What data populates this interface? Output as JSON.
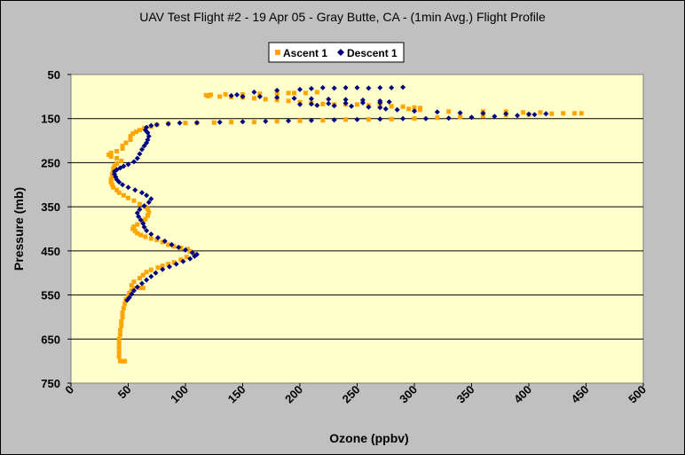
{
  "chart_data": {
    "type": "scatter",
    "title": "UAV Test Flight #2 - 19 Apr 05 - Gray Butte, CA - (1min Avg.) Flight Profile",
    "xlabel": "Ozone (ppbv)",
    "ylabel": "Pressure (mb)",
    "xlim": [
      0,
      500
    ],
    "ylim": [
      50,
      750
    ],
    "y_inverted": true,
    "xticks": [
      "0",
      "50",
      "100",
      "150",
      "200",
      "250",
      "300",
      "350",
      "400",
      "450",
      "500"
    ],
    "yticks": [
      "50",
      "150",
      "250",
      "350",
      "450",
      "550",
      "650",
      "750"
    ],
    "grid": "horizontal",
    "legend_position": "top-center",
    "plot_background": "#ffffcc",
    "series": [
      {
        "name": "Ascent 1",
        "color": "#ffa500",
        "marker": "square",
        "points": [
          [
            43,
            700
          ],
          [
            45,
            700
          ],
          [
            47,
            700
          ],
          [
            42,
            690
          ],
          [
            42,
            680
          ],
          [
            42,
            670
          ],
          [
            42,
            660
          ],
          [
            42,
            650
          ],
          [
            43,
            640
          ],
          [
            43,
            630
          ],
          [
            44,
            620
          ],
          [
            44,
            610
          ],
          [
            45,
            600
          ],
          [
            45,
            590
          ],
          [
            46,
            580
          ],
          [
            47,
            570
          ],
          [
            48,
            560
          ],
          [
            50,
            552
          ],
          [
            51,
            545
          ],
          [
            53,
            540
          ],
          [
            55,
            535
          ],
          [
            60,
            534
          ],
          [
            63,
            534
          ],
          [
            53,
            528
          ],
          [
            55,
            520
          ],
          [
            60,
            512
          ],
          [
            63,
            505
          ],
          [
            66,
            498
          ],
          [
            70,
            493
          ],
          [
            76,
            488
          ],
          [
            80,
            484
          ],
          [
            85,
            480
          ],
          [
            90,
            476
          ],
          [
            96,
            470
          ],
          [
            101,
            464
          ],
          [
            108,
            458
          ],
          [
            104,
            451
          ],
          [
            102,
            446
          ],
          [
            96,
            443
          ],
          [
            90,
            440
          ],
          [
            85,
            436
          ],
          [
            80,
            430
          ],
          [
            75,
            425
          ],
          [
            70,
            422
          ],
          [
            65,
            418
          ],
          [
            61,
            414
          ],
          [
            58,
            410
          ],
          [
            56,
            405
          ],
          [
            54,
            400
          ],
          [
            55,
            395
          ],
          [
            58,
            390
          ],
          [
            63,
            385
          ],
          [
            65,
            378
          ],
          [
            67,
            370
          ],
          [
            68,
            362
          ],
          [
            67,
            355
          ],
          [
            65,
            350
          ],
          [
            60,
            344
          ],
          [
            55,
            336
          ],
          [
            50,
            330
          ],
          [
            46,
            324
          ],
          [
            42,
            318
          ],
          [
            40,
            312
          ],
          [
            37,
            306
          ],
          [
            36,
            300
          ],
          [
            35,
            294
          ],
          [
            35,
            288
          ],
          [
            36,
            282
          ],
          [
            36,
            276
          ],
          [
            37,
            270
          ],
          [
            37,
            264
          ],
          [
            38,
            258
          ],
          [
            40,
            252
          ],
          [
            44,
            246
          ],
          [
            40,
            240
          ],
          [
            35,
            236
          ],
          [
            33,
            232
          ],
          [
            35,
            228
          ],
          [
            40,
            224
          ],
          [
            45,
            218
          ],
          [
            45,
            212
          ],
          [
            48,
            205
          ],
          [
            52,
            198
          ],
          [
            52,
            190
          ],
          [
            54,
            184
          ],
          [
            57,
            180
          ],
          [
            60,
            176
          ],
          [
            64,
            172
          ],
          [
            70,
            168
          ],
          [
            75,
            164
          ],
          [
            85,
            161
          ],
          [
            100,
            160
          ],
          [
            110,
            160
          ],
          [
            125,
            159
          ],
          [
            140,
            158
          ],
          [
            160,
            158
          ],
          [
            180,
            156
          ],
          [
            200,
            155
          ],
          [
            220,
            154
          ],
          [
            240,
            152
          ],
          [
            260,
            152
          ],
          [
            280,
            151
          ],
          [
            300,
            150
          ],
          [
            320,
            148
          ],
          [
            340,
            146
          ],
          [
            360,
            144
          ],
          [
            380,
            142
          ],
          [
            400,
            141
          ],
          [
            420,
            139
          ],
          [
            440,
            138
          ],
          [
            446,
            138
          ],
          [
            430,
            138
          ],
          [
            410,
            136
          ],
          [
            395,
            136
          ],
          [
            380,
            134
          ],
          [
            360,
            134
          ],
          [
            330,
            134
          ],
          [
            305,
            130
          ],
          [
            300,
            128
          ],
          [
            295,
            128
          ],
          [
            305,
            126
          ],
          [
            300,
            125
          ],
          [
            290,
            123
          ],
          [
            280,
            122
          ],
          [
            270,
            120
          ],
          [
            260,
            120
          ],
          [
            250,
            118
          ],
          [
            240,
            118
          ],
          [
            230,
            118
          ],
          [
            220,
            117
          ],
          [
            210,
            115
          ],
          [
            200,
            113
          ],
          [
            190,
            110
          ],
          [
            180,
            108
          ],
          [
            170,
            106
          ],
          [
            160,
            104
          ],
          [
            150,
            102
          ],
          [
            140,
            101
          ],
          [
            130,
            100
          ],
          [
            120,
            99
          ],
          [
            118,
            97
          ],
          [
            122,
            96
          ],
          [
            135,
            95
          ],
          [
            150,
            95
          ],
          [
            165,
            94
          ],
          [
            180,
            93
          ],
          [
            195,
            92
          ],
          [
            205,
            92
          ],
          [
            215,
            90
          ],
          [
            190,
            92
          ]
        ]
      },
      {
        "name": "Descent 1",
        "color": "#000080",
        "marker": "diamond",
        "points": [
          [
            290,
            79
          ],
          [
            280,
            80
          ],
          [
            270,
            80
          ],
          [
            260,
            81
          ],
          [
            250,
            80
          ],
          [
            240,
            80
          ],
          [
            230,
            81
          ],
          [
            220,
            80
          ],
          [
            210,
            82
          ],
          [
            200,
            84
          ],
          [
            180,
            86
          ],
          [
            160,
            90
          ],
          [
            145,
            96
          ],
          [
            140,
            98
          ],
          [
            150,
            100
          ],
          [
            165,
            100
          ],
          [
            180,
            102
          ],
          [
            195,
            104
          ],
          [
            210,
            105
          ],
          [
            225,
            106
          ],
          [
            240,
            107
          ],
          [
            255,
            108
          ],
          [
            270,
            110
          ],
          [
            278,
            112
          ],
          [
            270,
            114
          ],
          [
            255,
            114
          ],
          [
            240,
            115
          ],
          [
            225,
            116
          ],
          [
            210,
            117
          ],
          [
            200,
            118
          ],
          [
            215,
            120
          ],
          [
            230,
            121
          ],
          [
            245,
            122
          ],
          [
            260,
            124
          ],
          [
            270,
            125
          ],
          [
            275,
            128
          ],
          [
            285,
            130
          ],
          [
            300,
            133
          ],
          [
            320,
            135
          ],
          [
            340,
            137
          ],
          [
            360,
            138
          ],
          [
            380,
            139
          ],
          [
            400,
            140
          ],
          [
            415,
            139
          ],
          [
            405,
            141
          ],
          [
            390,
            143
          ],
          [
            370,
            145
          ],
          [
            350,
            147
          ],
          [
            330,
            149
          ],
          [
            310,
            150
          ],
          [
            290,
            150
          ],
          [
            270,
            151
          ],
          [
            250,
            152
          ],
          [
            230,
            153
          ],
          [
            210,
            154
          ],
          [
            190,
            155
          ],
          [
            170,
            156
          ],
          [
            150,
            157
          ],
          [
            130,
            158
          ],
          [
            110,
            159
          ],
          [
            95,
            160
          ],
          [
            85,
            162
          ],
          [
            75,
            164
          ],
          [
            70,
            166
          ],
          [
            66,
            170
          ],
          [
            65,
            176
          ],
          [
            67,
            182
          ],
          [
            68,
            190
          ],
          [
            67,
            198
          ],
          [
            66,
            205
          ],
          [
            64,
            212
          ],
          [
            62,
            220
          ],
          [
            60,
            230
          ],
          [
            58,
            240
          ],
          [
            55,
            248
          ],
          [
            50,
            254
          ],
          [
            46,
            258
          ],
          [
            43,
            262
          ],
          [
            40,
            266
          ],
          [
            38,
            270
          ],
          [
            38,
            276
          ],
          [
            39,
            282
          ],
          [
            40,
            288
          ],
          [
            42,
            294
          ],
          [
            45,
            300
          ],
          [
            50,
            306
          ],
          [
            56,
            312
          ],
          [
            62,
            318
          ],
          [
            66,
            324
          ],
          [
            70,
            332
          ],
          [
            68,
            340
          ],
          [
            64,
            348
          ],
          [
            60,
            356
          ],
          [
            58,
            364
          ],
          [
            59,
            372
          ],
          [
            61,
            380
          ],
          [
            63,
            388
          ],
          [
            64,
            396
          ],
          [
            66,
            404
          ],
          [
            70,
            412
          ],
          [
            76,
            420
          ],
          [
            82,
            428
          ],
          [
            88,
            436
          ],
          [
            94,
            442
          ],
          [
            100,
            448
          ],
          [
            106,
            454
          ],
          [
            110,
            458
          ],
          [
            108,
            462
          ],
          [
            104,
            468
          ],
          [
            98,
            474
          ],
          [
            92,
            480
          ],
          [
            86,
            486
          ],
          [
            80,
            492
          ],
          [
            74,
            500
          ],
          [
            70,
            508
          ],
          [
            66,
            516
          ],
          [
            62,
            524
          ],
          [
            58,
            532
          ],
          [
            55,
            540
          ],
          [
            53,
            548
          ],
          [
            51,
            556
          ],
          [
            49,
            562
          ]
        ]
      }
    ]
  }
}
